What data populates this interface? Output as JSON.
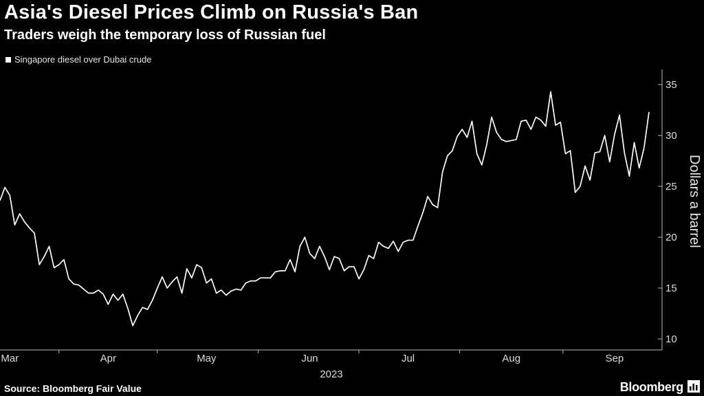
{
  "header": {
    "title": "Asia's Diesel Prices Climb on Russia's Ban",
    "subtitle": "Traders weigh the temporary loss of Russian fuel"
  },
  "footer": {
    "source": "Source: Bloomberg Fair Value",
    "brand": "Bloomberg"
  },
  "colors": {
    "background": "#000000",
    "line": "#ffffff",
    "text": "#ffffff"
  },
  "chart_data": {
    "type": "line",
    "title": "Asia's Diesel Prices Climb on Russia's Ban",
    "subtitle": "Traders weigh the temporary loss of Russian fuel",
    "ylabel": "Dollars a barrel",
    "xlabel": "2023",
    "ylim": [
      9,
      36
    ],
    "yticks": [
      10,
      15,
      20,
      25,
      30,
      35
    ],
    "y_axis_position": "right",
    "grid": false,
    "legend_position": "top-left",
    "x_ticks": [
      {
        "label": "Mar",
        "index": 2
      },
      {
        "label": "Apr",
        "index": 22
      },
      {
        "label": "May",
        "index": 42
      },
      {
        "label": "Jun",
        "index": 63
      },
      {
        "label": "Jul",
        "index": 83
      },
      {
        "label": "Aug",
        "index": 104
      },
      {
        "label": "Sep",
        "index": 125
      }
    ],
    "year_label": "2023",
    "series": [
      {
        "name": "Singapore diesel over Dubai crude",
        "values": [
          23.6,
          24.9,
          24.1,
          21.2,
          22.3,
          21.5,
          20.9,
          20.4,
          17.3,
          18.1,
          19.1,
          17.0,
          17.3,
          17.8,
          15.9,
          15.4,
          15.3,
          14.9,
          14.5,
          14.5,
          14.8,
          14.4,
          13.4,
          14.4,
          13.8,
          14.4,
          13.0,
          11.3,
          12.3,
          13.1,
          12.9,
          13.8,
          15.0,
          16.1,
          15.0,
          15.6,
          16.1,
          14.5,
          16.9,
          16.0,
          17.3,
          17.0,
          15.5,
          15.9,
          14.5,
          14.8,
          14.3,
          14.7,
          14.9,
          14.8,
          15.5,
          15.7,
          15.7,
          16.0,
          16.0,
          16.0,
          16.6,
          16.7,
          16.7,
          17.8,
          16.6,
          19.1,
          20.0,
          18.4,
          17.9,
          19.1,
          18.1,
          16.8,
          18.1,
          17.9,
          16.7,
          17.1,
          17.1,
          15.9,
          16.8,
          18.2,
          17.9,
          19.5,
          19.1,
          18.9,
          19.6,
          18.6,
          19.5,
          19.7,
          19.7,
          21.1,
          22.4,
          24.0,
          23.2,
          22.9,
          26.4,
          28.0,
          28.5,
          29.9,
          30.6,
          29.8,
          31.4,
          28.2,
          27.1,
          29.1,
          31.8,
          30.3,
          29.6,
          29.4,
          29.5,
          29.6,
          31.4,
          31.5,
          30.6,
          31.8,
          31.5,
          30.9,
          34.3,
          31.0,
          31.3,
          28.2,
          28.5,
          24.4,
          25.0,
          27.0,
          25.6,
          28.3,
          28.4,
          30.0,
          27.4,
          30.1,
          32.0,
          28.3,
          26.0,
          29.3,
          26.8,
          28.8,
          32.3
        ]
      }
    ]
  }
}
